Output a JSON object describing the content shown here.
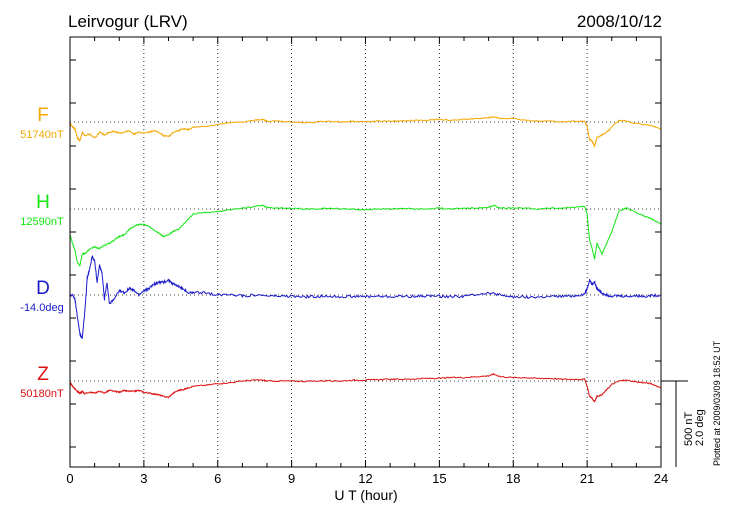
{
  "colors": {
    "F": "#f5a800",
    "H": "#11e611",
    "D": "#1a1acc",
    "Z": "#dd1111",
    "axis": "#000000"
  },
  "chart_data": {
    "type": "line",
    "title": "Leirvogur (LRV)",
    "date": "2008/10/12",
    "xlabel": "U T (hour)",
    "xlim": [
      0,
      24
    ],
    "xticks": [
      0,
      3,
      6,
      9,
      12,
      15,
      18,
      21,
      24
    ],
    "grid": true,
    "note": "Plotted at 2009/03/09 18:52 UT",
    "scale": {
      "nT": "500 nT",
      "deg": "2.0 deg",
      "per_nT": 500,
      "per_deg": 2.0
    },
    "series": [
      {
        "name": "F",
        "base_label": "51740nT",
        "base": 51740,
        "unit": "nT",
        "x": [
          0,
          0.1,
          0.2,
          0.3,
          0.4,
          0.5,
          0.6,
          0.8,
          1.0,
          1.2,
          1.4,
          1.6,
          1.8,
          2.0,
          2.2,
          2.4,
          2.6,
          2.8,
          3.0,
          3.2,
          3.4,
          3.6,
          3.8,
          4.0,
          4.2,
          4.4,
          4.6,
          4.8,
          5.0,
          5.5,
          6.0,
          6.5,
          7.0,
          7.5,
          7.8,
          8.0,
          8.5,
          9.0,
          9.5,
          10.0,
          10.5,
          11.0,
          11.5,
          12.0,
          12.5,
          13.0,
          13.5,
          14.0,
          14.5,
          15.0,
          15.5,
          16.0,
          16.5,
          17.0,
          17.2,
          17.5,
          18.0,
          18.5,
          19.0,
          19.5,
          20.0,
          20.5,
          20.9,
          21.0,
          21.1,
          21.2,
          21.3,
          21.4,
          21.6,
          21.8,
          22.0,
          22.3,
          22.6,
          23.0,
          23.3,
          23.6,
          24.0
        ],
        "values": [
          -10,
          -25,
          -40,
          -90,
          -110,
          -60,
          -80,
          -70,
          -95,
          -60,
          -75,
          -60,
          -55,
          -65,
          -60,
          -50,
          -70,
          -60,
          -65,
          -60,
          -50,
          -60,
          -80,
          -85,
          -60,
          -50,
          -40,
          -45,
          -30,
          -25,
          -15,
          -5,
          0,
          10,
          15,
          5,
          5,
          0,
          -5,
          0,
          5,
          0,
          5,
          0,
          5,
          5,
          5,
          10,
          10,
          15,
          10,
          15,
          20,
          25,
          30,
          20,
          20,
          10,
          5,
          5,
          0,
          5,
          5,
          -30,
          -100,
          -110,
          -140,
          -90,
          -75,
          -60,
          -30,
          10,
          5,
          -10,
          -15,
          -20,
          -40
        ]
      },
      {
        "name": "H",
        "base_label": "12590nT",
        "base": 12590,
        "unit": "nT",
        "x": [
          0,
          0.1,
          0.2,
          0.3,
          0.4,
          0.5,
          0.6,
          0.8,
          1.0,
          1.2,
          1.4,
          1.6,
          1.8,
          2.0,
          2.2,
          2.4,
          2.6,
          2.8,
          3.0,
          3.2,
          3.4,
          3.6,
          3.8,
          4.0,
          4.2,
          4.4,
          4.6,
          4.8,
          5.0,
          5.5,
          6.0,
          6.5,
          7.0,
          7.5,
          7.8,
          8.0,
          8.5,
          9.0,
          9.5,
          10.0,
          10.5,
          11.0,
          11.5,
          12.0,
          12.5,
          13.0,
          13.5,
          14.0,
          14.5,
          15.0,
          15.5,
          16.0,
          16.5,
          17.0,
          17.2,
          17.5,
          18.0,
          18.5,
          19.0,
          19.5,
          20.0,
          20.5,
          20.9,
          21.0,
          21.1,
          21.2,
          21.3,
          21.4,
          21.6,
          21.8,
          22.0,
          22.3,
          22.6,
          23.0,
          23.3,
          23.6,
          24.0
        ],
        "values": [
          -150,
          -200,
          -240,
          -310,
          -330,
          -260,
          -260,
          -235,
          -220,
          -230,
          -210,
          -200,
          -180,
          -160,
          -150,
          -120,
          -100,
          -90,
          -90,
          -100,
          -120,
          -140,
          -160,
          -150,
          -130,
          -120,
          -90,
          -60,
          -30,
          -20,
          -15,
          -5,
          5,
          15,
          20,
          10,
          5,
          5,
          0,
          0,
          5,
          0,
          0,
          -5,
          0,
          0,
          5,
          0,
          0,
          5,
          0,
          5,
          5,
          10,
          20,
          5,
          5,
          5,
          0,
          5,
          5,
          10,
          15,
          -30,
          -180,
          -230,
          -290,
          -200,
          -260,
          -200,
          -130,
          -10,
          5,
          -20,
          -40,
          -55,
          -90
        ]
      },
      {
        "name": "D",
        "base_label": "-14.0deg",
        "base": -14.0,
        "unit": "deg",
        "x": [
          0,
          0.1,
          0.2,
          0.3,
          0.4,
          0.5,
          0.6,
          0.7,
          0.8,
          0.9,
          1.0,
          1.1,
          1.2,
          1.3,
          1.4,
          1.5,
          1.6,
          1.8,
          2.0,
          2.2,
          2.4,
          2.6,
          2.8,
          3.0,
          3.2,
          3.4,
          3.6,
          3.8,
          4.0,
          4.2,
          4.4,
          4.6,
          4.8,
          5.0,
          5.5,
          6.0,
          6.5,
          7.0,
          7.5,
          8.0,
          8.5,
          9.0,
          9.5,
          10.0,
          10.5,
          11.0,
          11.5,
          12.0,
          12.5,
          13.0,
          13.5,
          14.0,
          14.5,
          15.0,
          15.5,
          16.0,
          16.5,
          17.0,
          17.3,
          17.6,
          18.0,
          18.5,
          19.0,
          19.5,
          20.0,
          20.5,
          20.9,
          21.0,
          21.1,
          21.2,
          21.3,
          21.4,
          21.6,
          21.8,
          22.0,
          22.3,
          22.6,
          23.0,
          23.3,
          23.6,
          24.0
        ],
        "values": [
          0,
          0,
          -0.1,
          -0.5,
          -0.9,
          -1.0,
          -0.4,
          0.4,
          0.6,
          0.9,
          0.8,
          0.3,
          0.7,
          0.5,
          -0.1,
          0.3,
          -0.2,
          -0.1,
          0.1,
          0.05,
          0.15,
          0.1,
          0.0,
          0.1,
          0.15,
          0.25,
          0.3,
          0.3,
          0.35,
          0.25,
          0.2,
          0.15,
          0.05,
          0.05,
          0.05,
          0.0,
          0.02,
          -0.02,
          0.0,
          -0.02,
          -0.03,
          -0.03,
          -0.05,
          -0.03,
          -0.03,
          -0.04,
          -0.03,
          -0.04,
          -0.03,
          -0.04,
          -0.03,
          -0.03,
          -0.02,
          -0.03,
          -0.04,
          -0.03,
          0.02,
          0.05,
          0.02,
          -0.02,
          -0.04,
          -0.05,
          -0.05,
          -0.04,
          -0.03,
          -0.02,
          0.02,
          0.15,
          0.35,
          0.25,
          0.3,
          0.15,
          0.05,
          0.0,
          -0.02,
          -0.02,
          -0.03,
          -0.02,
          -0.03,
          -0.02,
          0.0
        ]
      },
      {
        "name": "Z",
        "base_label": "50180nT",
        "base": 50180,
        "unit": "nT",
        "x": [
          0,
          0.1,
          0.2,
          0.3,
          0.4,
          0.5,
          0.6,
          0.8,
          1.0,
          1.2,
          1.4,
          1.6,
          1.8,
          2.0,
          2.2,
          2.4,
          2.6,
          2.8,
          3.0,
          3.2,
          3.4,
          3.6,
          3.8,
          4.0,
          4.2,
          4.4,
          4.6,
          4.8,
          5.0,
          5.5,
          6.0,
          6.5,
          7.0,
          7.5,
          7.8,
          8.0,
          8.5,
          9.0,
          9.5,
          10.0,
          10.5,
          11.0,
          11.5,
          12.0,
          12.5,
          13.0,
          13.5,
          14.0,
          14.5,
          15.0,
          15.5,
          16.0,
          16.5,
          17.0,
          17.2,
          17.5,
          18.0,
          18.5,
          19.0,
          19.5,
          20.0,
          20.5,
          20.9,
          21.0,
          21.1,
          21.2,
          21.3,
          21.4,
          21.6,
          21.8,
          22.0,
          22.3,
          22.6,
          23.0,
          23.3,
          23.6,
          24.0
        ],
        "values": [
          -10,
          -30,
          -45,
          -60,
          -70,
          -60,
          -75,
          -65,
          -70,
          -60,
          -70,
          -55,
          -60,
          -65,
          -55,
          -60,
          -60,
          -55,
          -65,
          -70,
          -75,
          -80,
          -90,
          -95,
          -70,
          -55,
          -50,
          -40,
          -30,
          -25,
          -15,
          -10,
          0,
          5,
          5,
          0,
          0,
          0,
          -2,
          0,
          2,
          0,
          5,
          5,
          8,
          10,
          10,
          12,
          15,
          15,
          20,
          20,
          25,
          30,
          40,
          25,
          20,
          20,
          15,
          15,
          10,
          10,
          10,
          -30,
          -90,
          -100,
          -120,
          -90,
          -80,
          -50,
          -20,
          0,
          5,
          -5,
          -10,
          -15,
          -40
        ]
      }
    ]
  }
}
